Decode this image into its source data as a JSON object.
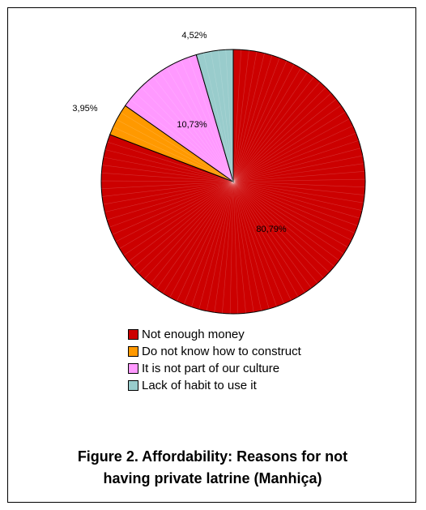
{
  "caption": {
    "line1": "Figure 2. Affordability: Reasons for not",
    "line2": "having private latrine (Manhiça)"
  },
  "chart_data": {
    "type": "pie",
    "categories": [
      "Not enough money",
      "Do not know  how  to construct",
      "It is not part of our culture",
      "Lack of habit to use it"
    ],
    "values": [
      80.79,
      3.95,
      10.73,
      4.52
    ],
    "value_labels": [
      "80,79%",
      "3,95%",
      "10,73%",
      "4,52%"
    ],
    "colors": [
      "#cc0000",
      "#ff9900",
      "#ff99ff",
      "#99cccc"
    ],
    "start": "12 o'clock",
    "direction": "clockwise",
    "legend_position": "bottom"
  }
}
